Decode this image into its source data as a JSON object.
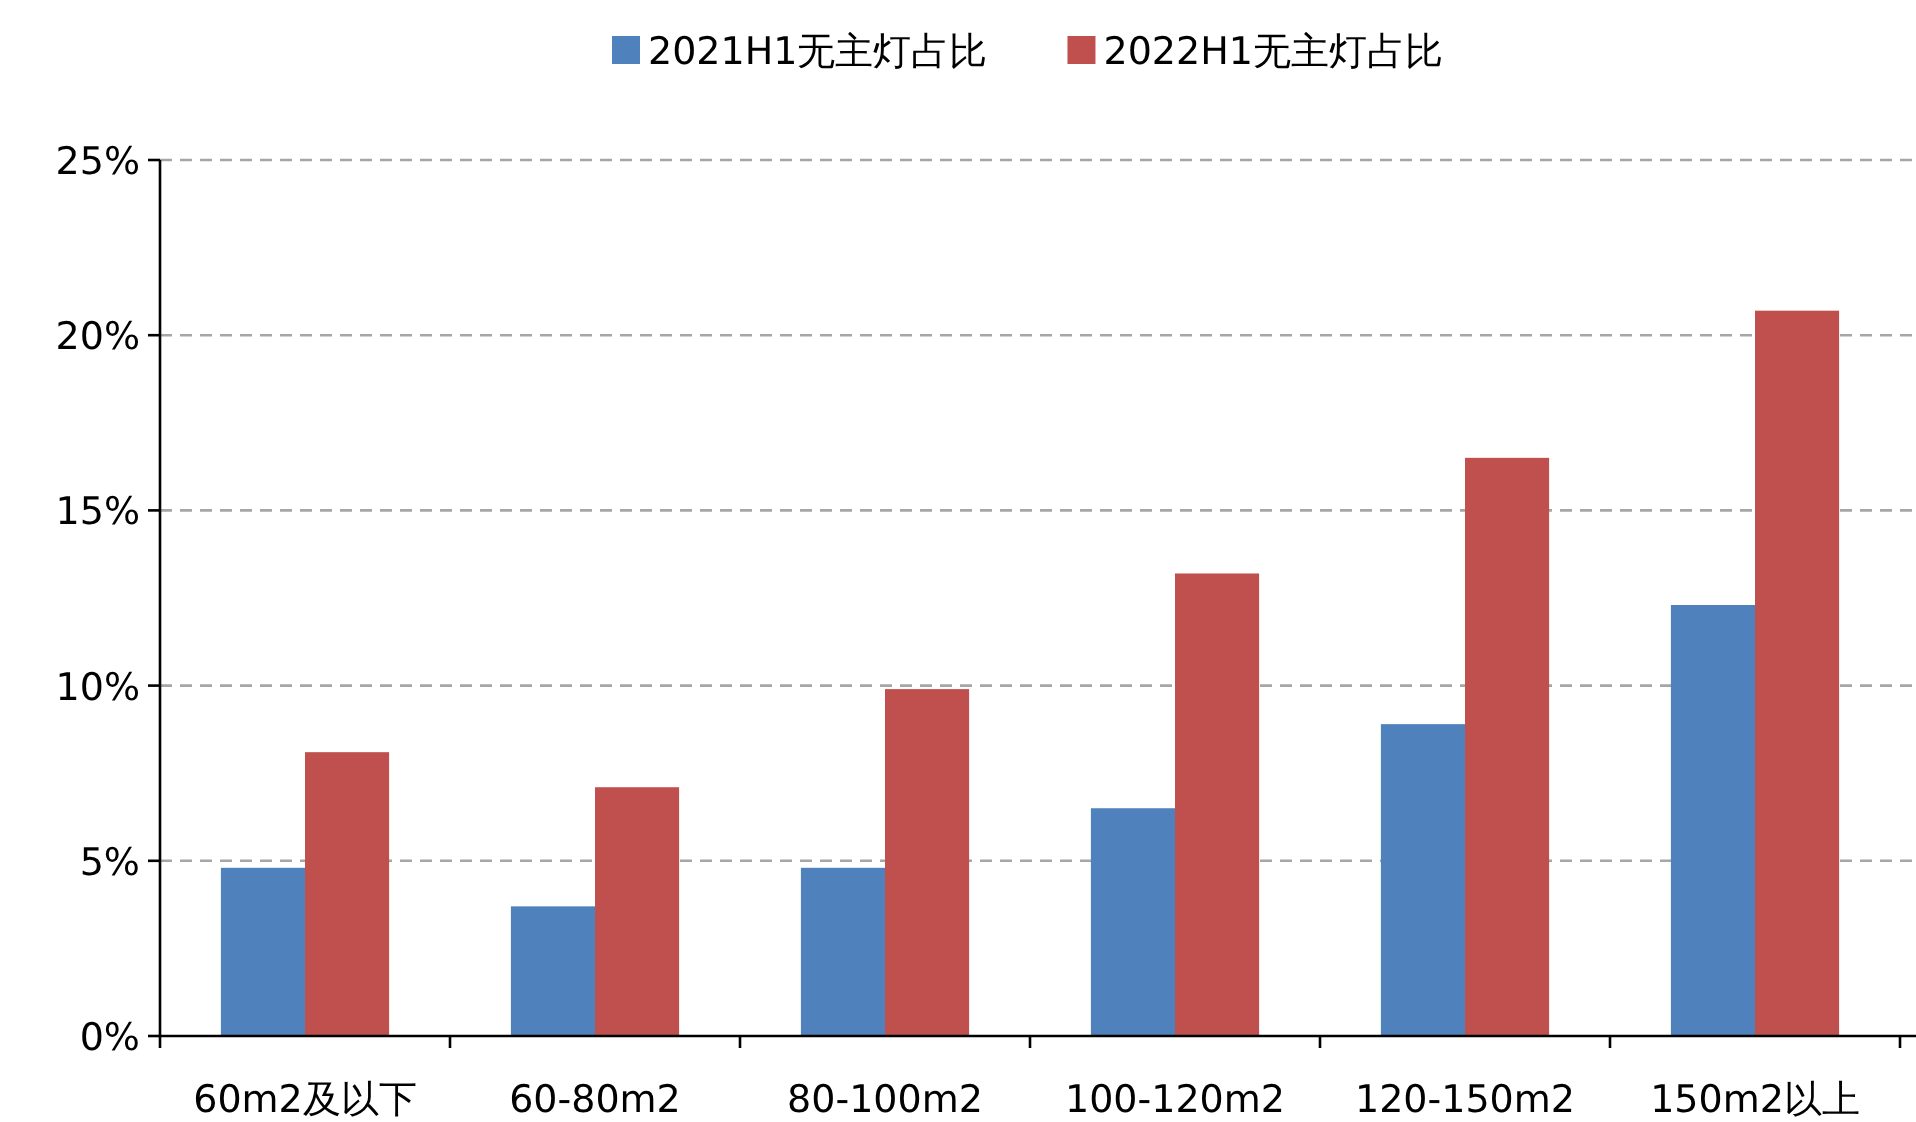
{
  "chart_data": {
    "type": "bar",
    "categories": [
      "60m2及以下",
      "60-80m2",
      "80-100m2",
      "100-120m2",
      "120-150m2",
      "150m2以上"
    ],
    "series": [
      {
        "name": "2021H1无主灯占比",
        "color": "#4f81bd",
        "values": [
          4.8,
          3.7,
          4.8,
          6.5,
          8.9,
          12.3
        ]
      },
      {
        "name": "2022H1无主灯占比",
        "color": "#c0504d",
        "values": [
          8.1,
          7.1,
          9.9,
          13.2,
          16.5,
          20.7
        ]
      }
    ],
    "ylim": [
      0,
      25
    ],
    "yticks": [
      {
        "value": 0,
        "label": "0%"
      },
      {
        "value": 5,
        "label": "5%"
      },
      {
        "value": 10,
        "label": "10%"
      },
      {
        "value": 15,
        "label": "15%"
      },
      {
        "value": 20,
        "label": "20%"
      },
      {
        "value": 25,
        "label": "25%"
      }
    ],
    "grid": "y",
    "legend": "top"
  }
}
